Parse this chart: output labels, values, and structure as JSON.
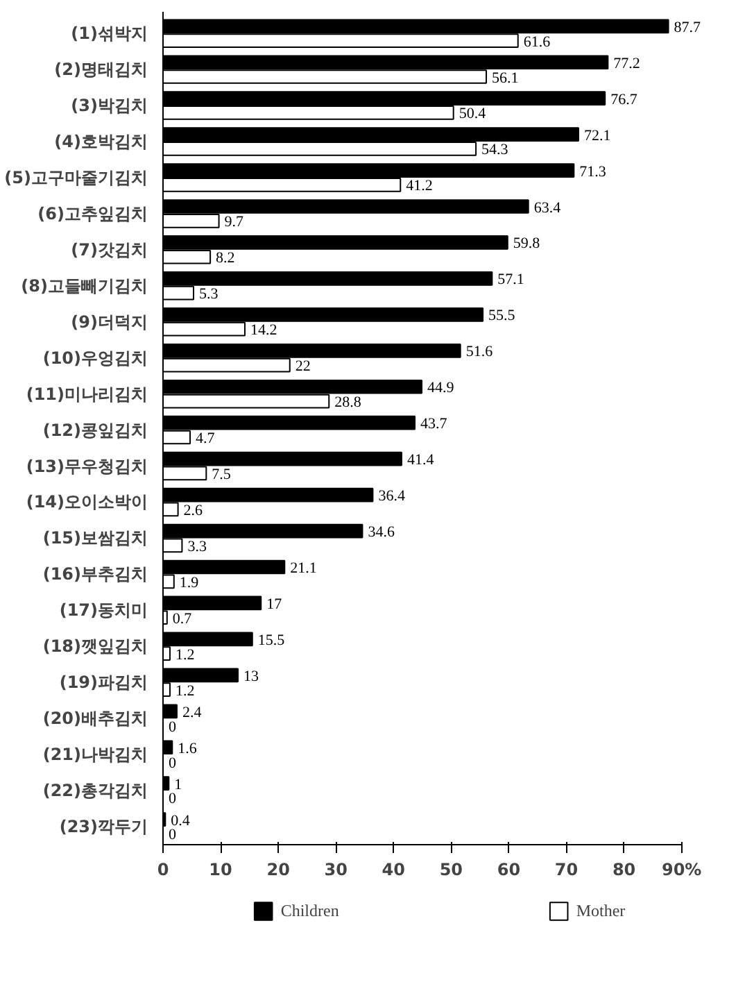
{
  "chart_data": {
    "type": "bar",
    "orientation": "horizontal",
    "categories": [
      "(1)섞박지",
      "(2)명태김치",
      "(3)박김치",
      "(4)호박김치",
      "(5)고구마줄기김치",
      "(6)고추잎김치",
      "(7)갓김치",
      "(8)고들빼기김치",
      "(9)더덕지",
      "(10)우엉김치",
      "(11)미나리김치",
      "(12)콩잎김치",
      "(13)무우청김치",
      "(14)오이소박이",
      "(15)보쌈김치",
      "(16)부추김치",
      "(17)동치미",
      "(18)깻잎김치",
      "(19)파김치",
      "(20)배추김치",
      "(21)나박김치",
      "(22)총각김치",
      "(23)깍두기"
    ],
    "series": [
      {
        "name": "Children",
        "color": "#000000",
        "values": [
          87.7,
          77.2,
          76.7,
          72.1,
          71.3,
          63.4,
          59.8,
          57.1,
          55.5,
          51.6,
          44.9,
          43.7,
          41.4,
          36.4,
          34.6,
          21.1,
          17,
          15.5,
          13,
          2.4,
          1.6,
          1,
          0.4
        ]
      },
      {
        "name": "Mother",
        "color": "#ffffff",
        "values": [
          61.6,
          56.1,
          50.4,
          54.3,
          41.2,
          9.7,
          8.2,
          5.3,
          14.2,
          22,
          28.8,
          4.7,
          7.5,
          2.6,
          3.3,
          1.9,
          0.7,
          1.2,
          1.2,
          0,
          0,
          0,
          0
        ]
      }
    ],
    "xlim": [
      0,
      90
    ],
    "xticks": [
      0,
      10,
      20,
      30,
      40,
      50,
      60,
      70,
      80,
      {
        "value": 90,
        "label": "90%"
      }
    ],
    "data_labels": true,
    "grid": false,
    "legend": "bottom"
  }
}
